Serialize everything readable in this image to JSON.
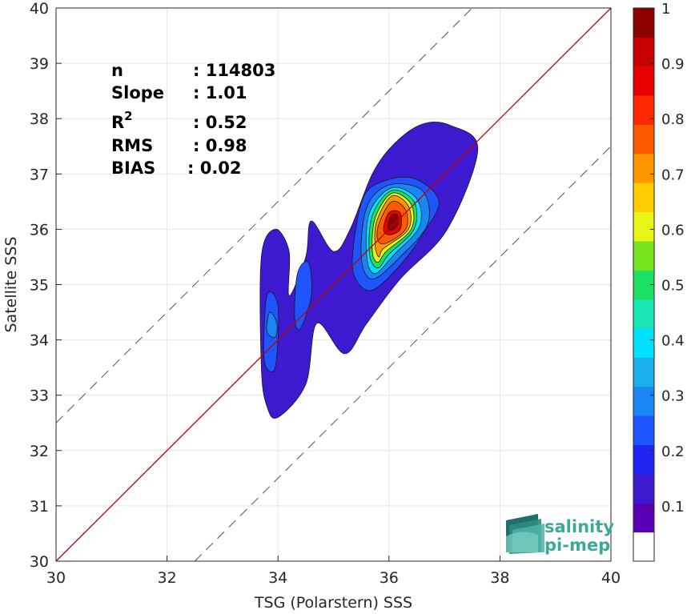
{
  "chart_data": {
    "type": "heatmap",
    "subtype": "density-contour scatter",
    "xlabel": "TSG (Polarstern) SSS",
    "ylabel": "Satellite SSS",
    "xlim": [
      30,
      40
    ],
    "ylim": [
      30,
      40
    ],
    "x_ticks": [
      "30",
      "32",
      "34",
      "36",
      "38",
      "40"
    ],
    "y_ticks": [
      "30",
      "31",
      "32",
      "33",
      "34",
      "35",
      "36",
      "37",
      "38",
      "39",
      "40"
    ],
    "grid": true,
    "stats": [
      {
        "label": "n",
        "value": ": 114803"
      },
      {
        "label": "Slope",
        "value": ": 1.01"
      },
      {
        "label": "R",
        "sup": "2",
        "value": ": 0.52"
      },
      {
        "label": "RMS",
        "value": ": 0.98"
      },
      {
        "label": "BIAS",
        "value": ": 0.02"
      }
    ],
    "lines": [
      {
        "kind": "one-to-one",
        "color": "#c00000",
        "points": [
          [
            30,
            30
          ],
          [
            40,
            40
          ]
        ]
      },
      {
        "kind": "upper-bound-dashed",
        "color": "#555555",
        "points": [
          [
            30,
            32.5
          ],
          [
            37.5,
            40
          ]
        ]
      },
      {
        "kind": "lower-bound-dashed",
        "color": "#555555",
        "points": [
          [
            32.5,
            30
          ],
          [
            40,
            37.5
          ]
        ]
      }
    ],
    "colorbar": {
      "range": [
        0,
        1
      ],
      "ticks": [
        "0.1",
        "0.2",
        "0.3",
        "0.4",
        "0.5",
        "0.6",
        "0.7",
        "0.8",
        "0.9",
        "1"
      ],
      "colors": [
        "#ffffff",
        "#5a00b4",
        "#3d19d0",
        "#1f24f0",
        "#1f55ff",
        "#1a85f5",
        "#1aafeb",
        "#00e1ff",
        "#1ae6b4",
        "#1ee164",
        "#78e61e",
        "#e6f514",
        "#ffcd00",
        "#ff9600",
        "#ff5a00",
        "#ff2800",
        "#e60000",
        "#c80000",
        "#8c0000"
      ]
    },
    "density_levels": [
      {
        "level": 0.1,
        "region": [
          [
            33.7,
            33.5
          ],
          [
            33.7,
            35.5
          ],
          [
            33.95,
            36.0
          ],
          [
            34.2,
            35.6
          ],
          [
            34.2,
            34.8
          ],
          [
            34.5,
            35.5
          ],
          [
            34.6,
            36.15
          ],
          [
            35.0,
            35.6
          ],
          [
            35.3,
            36.0
          ],
          [
            35.7,
            37.0
          ],
          [
            36.1,
            37.55
          ],
          [
            36.6,
            37.9
          ],
          [
            37.1,
            37.88
          ],
          [
            37.6,
            37.45
          ],
          [
            37.05,
            36.0
          ],
          [
            36.2,
            35.1
          ],
          [
            35.6,
            34.3
          ],
          [
            35.2,
            33.75
          ],
          [
            34.7,
            34.3
          ],
          [
            34.5,
            33.2
          ],
          [
            34.0,
            32.6
          ],
          [
            33.8,
            32.8
          ]
        ]
      },
      {
        "level": 0.2,
        "region": [
          [
            33.75,
            33.65
          ],
          [
            33.8,
            34.8
          ],
          [
            34.0,
            34.6
          ],
          [
            33.95,
            33.5
          ]
        ]
      },
      {
        "level": 0.2,
        "region": [
          [
            34.3,
            34.4
          ],
          [
            34.35,
            35.2
          ],
          [
            34.55,
            35.4
          ],
          [
            34.6,
            34.8
          ],
          [
            34.4,
            34.2
          ]
        ]
      },
      {
        "level": 0.2,
        "region": [
          [
            35.35,
            35.6
          ],
          [
            35.55,
            36.6
          ],
          [
            36.0,
            36.9
          ],
          [
            36.5,
            36.9
          ],
          [
            36.9,
            36.5
          ],
          [
            36.6,
            35.9
          ],
          [
            36.2,
            35.35
          ],
          [
            35.7,
            34.9
          ],
          [
            35.4,
            35.1
          ]
        ]
      },
      {
        "level": 0.3,
        "region": [
          [
            33.8,
            34.15
          ],
          [
            33.85,
            34.5
          ],
          [
            33.98,
            34.3
          ],
          [
            33.95,
            34.05
          ]
        ]
      },
      {
        "level": 0.3,
        "region": [
          [
            35.5,
            35.5
          ],
          [
            35.6,
            36.4
          ],
          [
            36.0,
            36.8
          ],
          [
            36.6,
            36.7
          ],
          [
            36.7,
            36.1
          ],
          [
            36.2,
            35.5
          ],
          [
            35.7,
            35.1
          ]
        ]
      },
      {
        "level": 0.4,
        "region": [
          [
            35.6,
            35.5
          ],
          [
            35.65,
            36.3
          ],
          [
            36.05,
            36.75
          ],
          [
            36.5,
            36.55
          ],
          [
            36.55,
            36.05
          ],
          [
            36.1,
            35.55
          ],
          [
            35.75,
            35.2
          ]
        ]
      },
      {
        "level": 0.5,
        "region": [
          [
            35.65,
            35.55
          ],
          [
            35.7,
            36.25
          ],
          [
            36.05,
            36.7
          ],
          [
            36.45,
            36.5
          ],
          [
            36.45,
            36.0
          ],
          [
            36.0,
            35.55
          ],
          [
            35.8,
            35.3
          ]
        ]
      },
      {
        "level": 0.6,
        "region": [
          [
            35.7,
            35.6
          ],
          [
            35.75,
            36.2
          ],
          [
            36.05,
            36.65
          ],
          [
            36.4,
            36.45
          ],
          [
            36.4,
            36.0
          ],
          [
            35.95,
            35.6
          ],
          [
            35.8,
            35.4
          ]
        ]
      },
      {
        "level": 0.7,
        "region": [
          [
            35.75,
            35.7
          ],
          [
            35.78,
            36.15
          ],
          [
            36.05,
            36.6
          ],
          [
            36.35,
            36.42
          ],
          [
            36.35,
            36.0
          ],
          [
            35.9,
            35.65
          ],
          [
            35.82,
            35.5
          ]
        ]
      },
      {
        "level": 0.8,
        "region": [
          [
            35.8,
            35.8
          ],
          [
            35.82,
            36.1
          ],
          [
            36.05,
            36.5
          ],
          [
            36.3,
            36.35
          ],
          [
            36.3,
            36.0
          ],
          [
            35.95,
            35.75
          ]
        ]
      },
      {
        "level": 0.9,
        "region": [
          [
            35.9,
            36.0
          ],
          [
            36.0,
            36.3
          ],
          [
            36.2,
            36.3
          ],
          [
            36.2,
            36.0
          ],
          [
            36.0,
            35.9
          ]
        ]
      },
      {
        "level": 1.0,
        "region": [
          [
            35.98,
            36.05
          ],
          [
            36.05,
            36.25
          ],
          [
            36.15,
            36.25
          ],
          [
            36.15,
            36.08
          ],
          [
            36.05,
            35.98
          ]
        ]
      }
    ]
  },
  "logo": {
    "line1": "salinity",
    "line2": "pi-mep"
  }
}
